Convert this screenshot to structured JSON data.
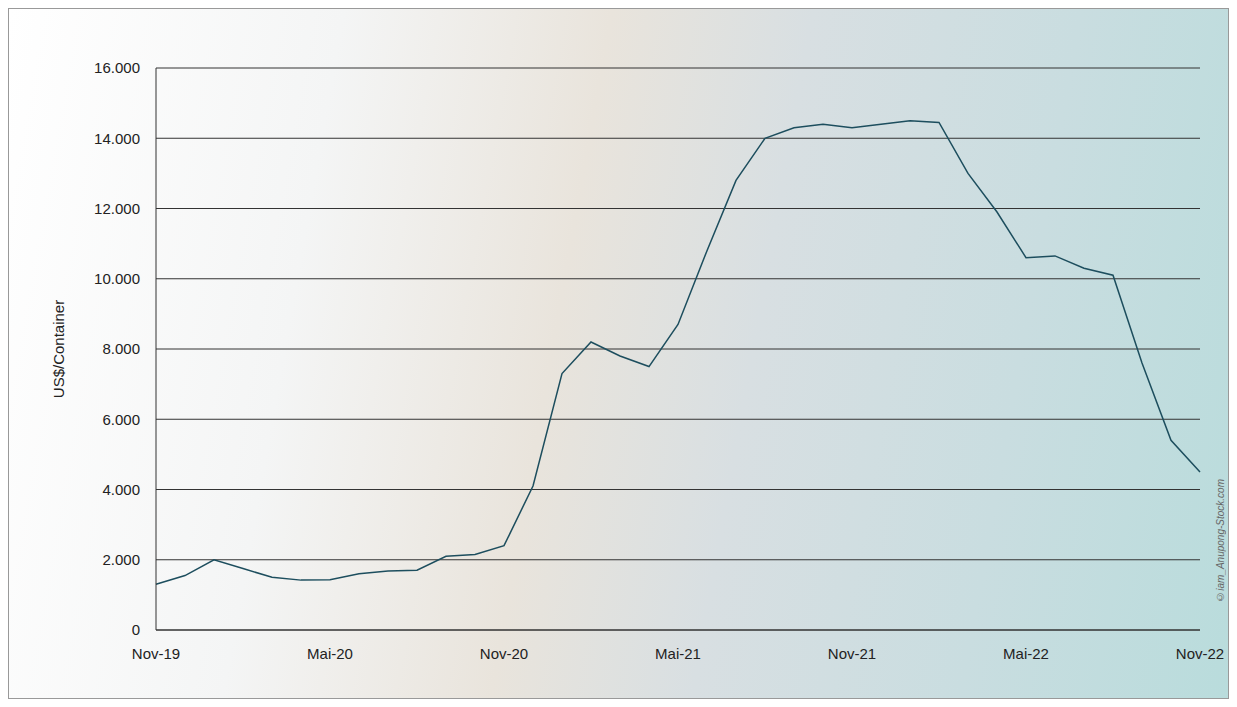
{
  "chart_data": {
    "type": "line",
    "y_label": "US$/Container",
    "annotations": [
      "©iam_Anupong-Stock.com"
    ],
    "categories": [
      "Nov-19",
      null,
      null,
      null,
      null,
      null,
      "Mai-20",
      null,
      null,
      null,
      null,
      null,
      "Nov-20",
      null,
      null,
      null,
      null,
      null,
      "Mai-21",
      null,
      null,
      null,
      null,
      null,
      "Nov-21",
      null,
      null,
      null,
      null,
      null,
      "Mai-22",
      null,
      null,
      null,
      null,
      null,
      "Nov-22"
    ],
    "values": [
      1300,
      1550,
      2000,
      1750,
      1500,
      1420,
      1430,
      1600,
      1680,
      1700,
      2100,
      2150,
      2400,
      4100,
      7300,
      8200,
      7800,
      7500,
      8700,
      10800,
      12800,
      14000,
      14300,
      14400,
      14300,
      14400,
      14500,
      14450,
      13000,
      11900,
      10600,
      10650,
      10300,
      10100,
      7600,
      5400,
      4500
    ],
    "color": "#1d4e5e",
    "ylim": [
      0,
      16000
    ],
    "yticks": [
      0,
      {
        "value": 2000,
        "label": "2.000"
      },
      {
        "value": 4000,
        "label": "4.000"
      },
      {
        "value": 6000,
        "label": "6.000"
      },
      {
        "value": 8000,
        "label": "8.000"
      },
      {
        "value": 10000,
        "label": "10.000"
      },
      {
        "value": 12000,
        "label": "12.000"
      },
      {
        "value": 14000,
        "label": "14.000"
      },
      {
        "value": 16000,
        "label": "16.000"
      }
    ],
    "grid": true
  }
}
